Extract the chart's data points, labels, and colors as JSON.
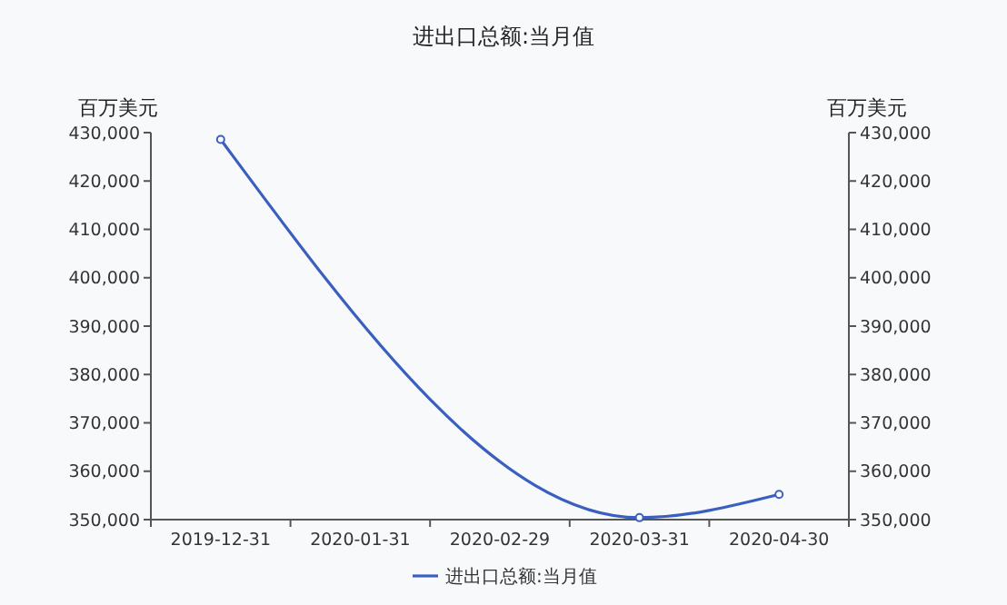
{
  "chart_data": {
    "type": "line",
    "title": "进出口总额:当月值",
    "ylabel": "百万美元",
    "y2label": "百万美元",
    "categories": [
      "2019-12-31",
      "2020-01-31",
      "2020-02-29",
      "2020-03-31",
      "2020-04-30"
    ],
    "series": [
      {
        "name": "进出口总额:当月值",
        "color": "#3a5fbf",
        "values": [
          428600,
          null,
          null,
          350400,
          355200
        ]
      }
    ],
    "ylim": [
      350000,
      430000
    ],
    "yticks": [
      {
        "value": 350000,
        "label": "350,000"
      },
      {
        "value": 360000,
        "label": "360,000"
      },
      {
        "value": 370000,
        "label": "370,000"
      },
      {
        "value": 380000,
        "label": "380,000"
      },
      {
        "value": 390000,
        "label": "390,000"
      },
      {
        "value": 400000,
        "label": "400,000"
      },
      {
        "value": 410000,
        "label": "410,000"
      },
      {
        "value": 420000,
        "label": "420,000"
      },
      {
        "value": 430000,
        "label": "430,000"
      }
    ],
    "y2lim": [
      350000,
      430000
    ],
    "y2ticks": [
      {
        "value": 350000,
        "label": "350,000"
      },
      {
        "value": 360000,
        "label": "360,000"
      },
      {
        "value": 370000,
        "label": "370,000"
      },
      {
        "value": 380000,
        "label": "380,000"
      },
      {
        "value": 390000,
        "label": "390,000"
      },
      {
        "value": 400000,
        "label": "400,000"
      },
      {
        "value": 410000,
        "label": "410,000"
      },
      {
        "value": 420000,
        "label": "420,000"
      },
      {
        "value": 430000,
        "label": "430,000"
      }
    ],
    "legend": "bottom",
    "grid": false,
    "marker": "circle",
    "line_style": "solid"
  }
}
